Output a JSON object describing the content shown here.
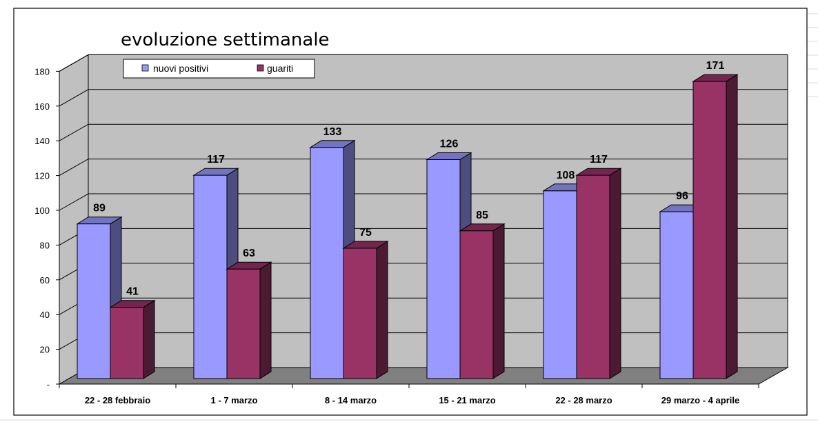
{
  "chart_data": {
    "type": "bar",
    "title": "evoluzione settimanale",
    "categories": [
      "22 - 28 febbraio",
      "1 - 7 marzo",
      "8 - 14 marzo",
      "15 - 21 marzo",
      "22 - 28 marzo",
      "29 marzo - 4 aprile"
    ],
    "series": [
      {
        "name": "nuovi positivi",
        "values": [
          89,
          117,
          133,
          126,
          108,
          96
        ],
        "color": "#9999ff"
      },
      {
        "name": "guariti",
        "values": [
          41,
          63,
          75,
          85,
          117,
          171
        ],
        "color": "#993366"
      }
    ],
    "y_ticks": [
      "-",
      "20",
      "40",
      "60",
      "80",
      "100",
      "120",
      "140",
      "160",
      "180"
    ],
    "ylim": [
      0,
      180
    ],
    "grid": true,
    "legend_position": "top-left",
    "data_labels": true,
    "three_d": true,
    "colors": {
      "wall": "#c0c0c0",
      "floor": "#808080",
      "gridline": "#000000",
      "spreadsheet_grid": "#d9d9d9"
    }
  }
}
